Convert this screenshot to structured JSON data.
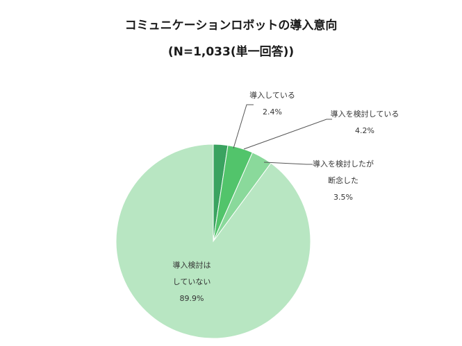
{
  "chart_data": {
    "type": "pie",
    "title": "コミュニケーションロボットの導入意向",
    "subtitle": "(N=1,033(単一回答))",
    "slices": [
      {
        "label_lines": [
          "導入している"
        ],
        "value": 2.4,
        "value_label": "2.4%",
        "color": "#3aa360"
      },
      {
        "label_lines": [
          "導入を検討している"
        ],
        "value": 4.2,
        "value_label": "4.2%",
        "color": "#52c46b"
      },
      {
        "label_lines": [
          "導入を検討したが",
          "断念した"
        ],
        "value": 3.5,
        "value_label": "3.5%",
        "color": "#8ad99b"
      },
      {
        "label_lines": [
          "導入検討は",
          "していない"
        ],
        "value": 89.9,
        "value_label": "89.9%",
        "color": "#b8e6c2"
      }
    ]
  }
}
